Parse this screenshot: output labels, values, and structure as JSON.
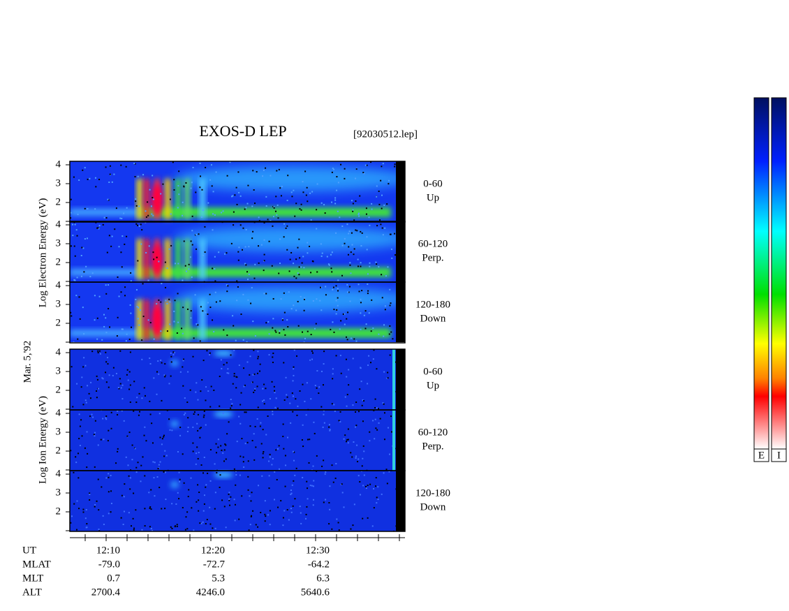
{
  "header": {
    "title": "EXOS-D LEP",
    "file": "[92030512.lep]"
  },
  "side_labels": {
    "date": "Mar. 5,'92",
    "electron_axis": "Log Electron Energy (eV)",
    "ion_axis": "Log Ion Energy (eV)"
  },
  "energy_ticks": [
    4,
    3,
    2
  ],
  "electron_panels": [
    {
      "angle": "0-60",
      "direction": "Up"
    },
    {
      "angle": "60-120",
      "direction": "Perp."
    },
    {
      "angle": "120-180",
      "direction": "Down"
    }
  ],
  "ion_panels": [
    {
      "angle": "0-60",
      "direction": "Up"
    },
    {
      "angle": "60-120",
      "direction": "Perp."
    },
    {
      "angle": "120-180",
      "direction": "Down"
    }
  ],
  "footer": {
    "rows": [
      [
        "UT",
        "12:10",
        "12:20",
        "12:30"
      ],
      [
        "MLAT",
        "-79.0",
        "-72.7",
        "-64.2"
      ],
      [
        "MLT",
        "0.7",
        "5.3",
        "6.3"
      ],
      [
        "ALT",
        "2700.4",
        "4246.0",
        "5640.6"
      ]
    ]
  },
  "colorbar": {
    "labels": [
      "E",
      "I"
    ]
  }
}
